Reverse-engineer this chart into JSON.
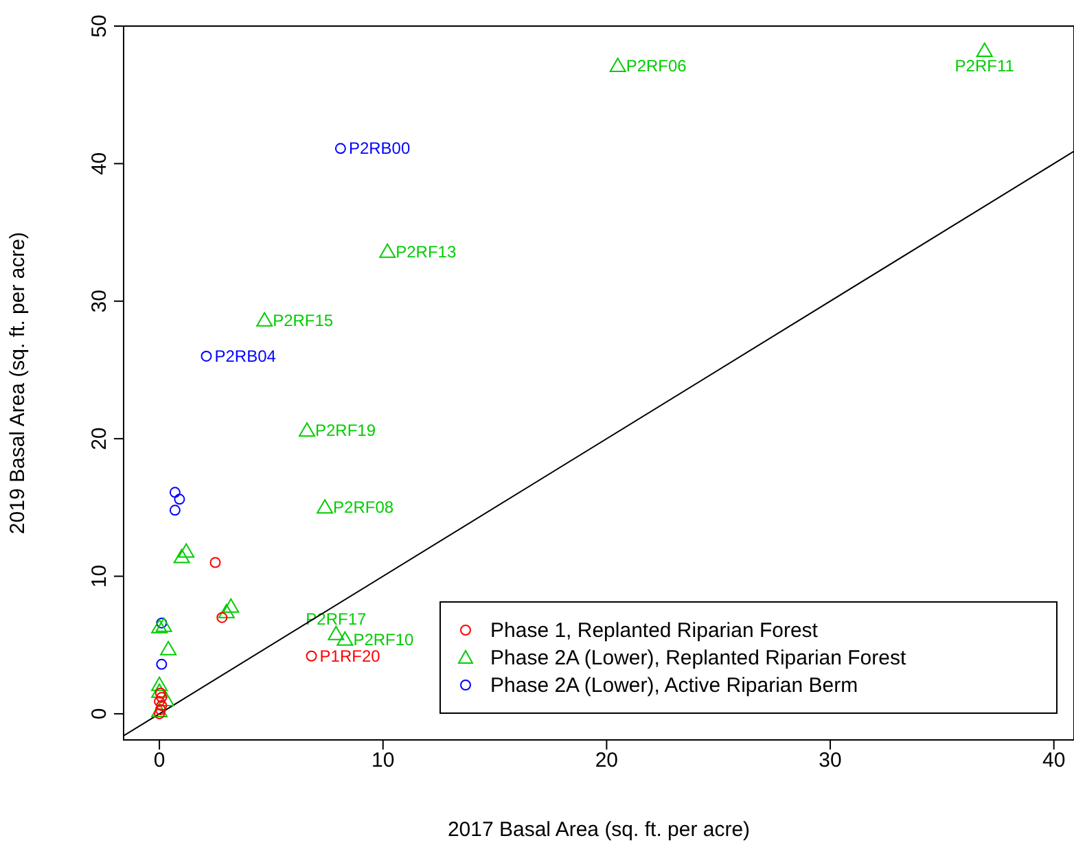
{
  "chart_data": {
    "type": "scatter",
    "xlabel": "2017 Basal Area (sq. ft. per acre)",
    "ylabel": "2019 Basal Area (sq. ft. per acre)",
    "xlim": [
      -1.6,
      40.9
    ],
    "ylim": [
      -1.9,
      50
    ],
    "xticks": [
      0,
      10,
      20,
      30,
      40
    ],
    "yticks": [
      0,
      10,
      20,
      30,
      40,
      50
    ],
    "grid": false,
    "legend": "bottom right",
    "series": [
      {
        "name": "Phase 1, Replanted Riparian Forest",
        "color": "#ff0000",
        "marker": "circle",
        "x": [
          2.5,
          2.8,
          6.8,
          0.0,
          0.05,
          0.1,
          0.0,
          0.1,
          0.05
        ],
        "values": [
          11,
          7,
          4.2,
          0,
          0.3,
          0.6,
          0.9,
          1.2,
          1.5
        ]
      },
      {
        "name": "Phase 2A (Lower), Replanted Riparian Forest",
        "color": "#00cc00",
        "marker": "triangle",
        "x": [
          36.9,
          20.5,
          10.2,
          4.7,
          6.6,
          7.4,
          7.9,
          8.3,
          1.2,
          1.0,
          3.2,
          3.0,
          0.0,
          0.2,
          0.4,
          0.0,
          0.0,
          0.3,
          0.0
        ],
        "values": [
          48.2,
          47.1,
          33.6,
          28.6,
          20.6,
          15.0,
          5.8,
          5.4,
          11.8,
          11.4,
          7.8,
          7.4,
          6.3,
          6.4,
          4.7,
          2.1,
          1.6,
          1.0,
          0.2
        ]
      },
      {
        "name": "Phase 2A (Lower), Active Riparian Berm",
        "color": "#0000ff",
        "marker": "circle",
        "x": [
          8.1,
          2.1,
          0.7,
          0.9,
          0.7,
          0.1,
          0.1
        ],
        "values": [
          41.1,
          26,
          16.1,
          15.6,
          14.8,
          6.6,
          3.6
        ]
      },
      {
        "type": "line",
        "color": "#000000",
        "marker": "none",
        "x": [
          -1.6,
          40.9
        ],
        "values": [
          -1.6,
          40.9
        ]
      }
    ],
    "annotations": [
      {
        "text": "P2RF11",
        "x": 36.9,
        "y": 48.2
      },
      {
        "text": "P2RF06",
        "x": 20.5,
        "y": 47.1
      },
      {
        "text": "P2RB00",
        "x": 8.1,
        "y": 41.1
      },
      {
        "text": "P2RF13",
        "x": 10.2,
        "y": 33.6
      },
      {
        "text": "P2RF15",
        "x": 4.7,
        "y": 28.6
      },
      {
        "text": "P2RB04",
        "x": 2.1,
        "y": 26
      },
      {
        "text": "P2RF19",
        "x": 6.6,
        "y": 20.6
      },
      {
        "text": "P2RF08",
        "x": 7.4,
        "y": 15.0
      },
      {
        "text": "P2RF17",
        "x": 7.9,
        "y": 5.8
      },
      {
        "text": "P2RF10",
        "x": 8.3,
        "y": 5.4
      },
      {
        "text": "P1RF20",
        "x": 6.8,
        "y": 4.2
      }
    ]
  }
}
